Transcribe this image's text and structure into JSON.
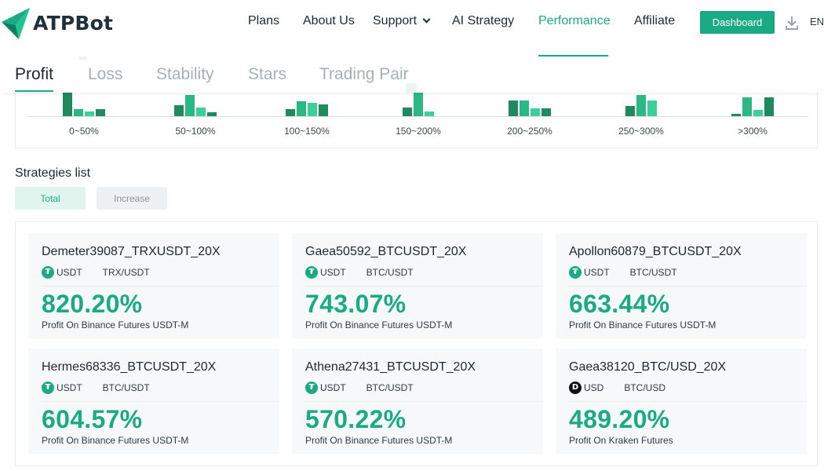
{
  "brand": {
    "name": "ATPBot",
    "accent": "#1aab84"
  },
  "nav": {
    "items": [
      {
        "label": "Plans"
      },
      {
        "label": "About Us"
      },
      {
        "label": "Support",
        "has_dropdown": true
      },
      {
        "label": "AI Strategy"
      },
      {
        "label": "Performance",
        "active": true
      },
      {
        "label": "Affiliate"
      }
    ],
    "dashboard_label": "Dashboard",
    "download_icon": "download-icon",
    "language": "EN"
  },
  "ranking_tabs": [
    {
      "label": "Profit",
      "active": true
    },
    {
      "label": "Loss"
    },
    {
      "label": "Stability"
    },
    {
      "label": "Stars"
    },
    {
      "label": "Trading Pair"
    }
  ],
  "chart_data": {
    "type": "bar",
    "title": "",
    "xlabel": "",
    "ylabel": "",
    "categories": [
      "0~50%",
      "50~100%",
      "100~150%",
      "150~200%",
      "200~250%",
      "250~300%",
      ">300%"
    ],
    "bar_colors": [
      "#1e8a5e",
      "#2cb884",
      "#3bd09a"
    ],
    "groups": [
      [
        31,
        9,
        6,
        9
      ],
      [
        14,
        27,
        11,
        5
      ],
      [
        9,
        19,
        17,
        15
      ],
      [
        11,
        42,
        6
      ],
      [
        20,
        20,
        10,
        10
      ],
      [
        13,
        27,
        20
      ],
      [
        3,
        24,
        8,
        24
      ]
    ]
  },
  "strategies": {
    "title": "Strategies list",
    "filters": [
      {
        "label": "Total",
        "active": true
      },
      {
        "label": "Increase"
      }
    ],
    "items": [
      {
        "name": "Demeter39087_TRXUSDT_20X",
        "coin": "USDT",
        "coin_icon": "tether-icon",
        "pair": "TRX/USDT",
        "percent": "820.20%",
        "desc": "Profit On Binance Futures USDT-M"
      },
      {
        "name": "Gaea50592_BTCUSDT_20X",
        "coin": "USDT",
        "coin_icon": "tether-icon",
        "pair": "BTC/USDT",
        "percent": "743.07%",
        "desc": "Profit On Binance Futures USDT-M"
      },
      {
        "name": "Apollon60879_BTCUSDT_20X",
        "coin": "USDT",
        "coin_icon": "tether-icon",
        "pair": "BTC/USDT",
        "percent": "663.44%",
        "desc": "Profit On Binance Futures USDT-M"
      },
      {
        "name": "Hermes68336_BTCUSDT_20X",
        "coin": "USDT",
        "coin_icon": "tether-icon",
        "pair": "BTC/USDT",
        "percent": "604.57%",
        "desc": "Profit On Binance Futures USDT-M"
      },
      {
        "name": "Athena27431_BTCUSDT_20X",
        "coin": "USDT",
        "coin_icon": "tether-icon",
        "pair": "BTC/USDT",
        "percent": "570.22%",
        "desc": "Profit On Binance Futures USDT-M"
      },
      {
        "name": "Gaea38120_BTC/USD_20X",
        "coin": "USD",
        "coin_icon": "usd-coin-icon",
        "pair": "BTC/USD",
        "percent": "489.20%",
        "desc": "Profit On Kraken Futures"
      }
    ]
  }
}
